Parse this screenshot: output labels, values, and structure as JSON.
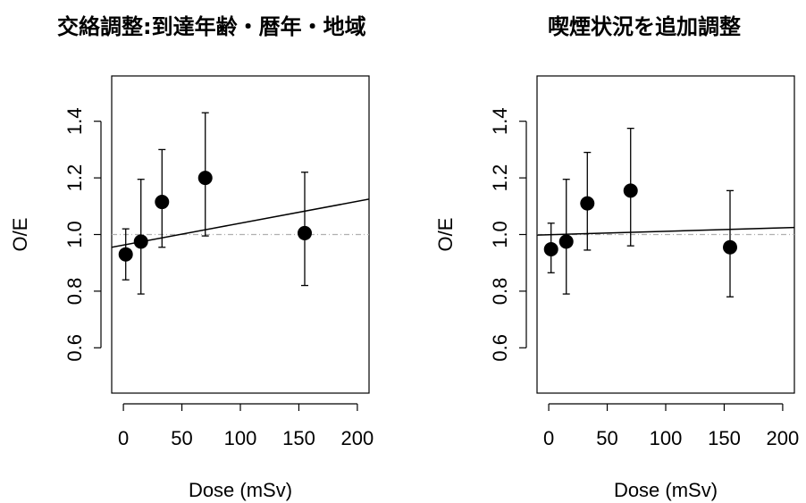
{
  "colors": {
    "points": "#000000",
    "fit_line": "#000000",
    "reference_line": "#b0b0b0",
    "frame": "#000000"
  },
  "panels": [
    {
      "title": "交絡調整:到達年齢・暦年・地域"
    },
    {
      "title": "喫煙状況を追加調整"
    }
  ],
  "chart_data": [
    {
      "type": "scatter",
      "title": "交絡調整:到達年齢・暦年・地域",
      "xlabel": "Dose (mSv)",
      "ylabel": "O/E",
      "xlim": [
        -10,
        210
      ],
      "ylim": [
        0.44,
        1.56
      ],
      "xticks": [
        0,
        50,
        100,
        150,
        200
      ],
      "xtick_labels": [
        "0",
        "50",
        "100",
        "150",
        "200"
      ],
      "yticks": [
        0.6,
        0.8,
        1.0,
        1.2,
        1.4
      ],
      "ytick_labels": [
        "0.6",
        "0.8",
        "1.0",
        "1.2",
        "1.4"
      ],
      "grid": false,
      "points": [
        {
          "x": 2,
          "y": 0.93,
          "lower": 0.84,
          "upper": 1.02
        },
        {
          "x": 15,
          "y": 0.975,
          "lower": 0.79,
          "upper": 1.195
        },
        {
          "x": 33,
          "y": 1.115,
          "lower": 0.955,
          "upper": 1.3
        },
        {
          "x": 70,
          "y": 1.2,
          "lower": 0.995,
          "upper": 1.43
        },
        {
          "x": 155,
          "y": 1.005,
          "lower": 0.82,
          "upper": 1.22
        }
      ],
      "fit_line": {
        "x": [
          -10,
          210
        ],
        "y": [
          0.955,
          1.125
        ]
      },
      "reference_line": {
        "y": 1.0,
        "style": "dashed"
      }
    },
    {
      "type": "scatter",
      "title": "喫煙状況を追加調整",
      "xlabel": "Dose (mSv)",
      "ylabel": "O/E",
      "xlim": [
        -10,
        210
      ],
      "ylim": [
        0.44,
        1.56
      ],
      "xticks": [
        0,
        50,
        100,
        150,
        200
      ],
      "xtick_labels": [
        "0",
        "50",
        "100",
        "150",
        "200"
      ],
      "yticks": [
        0.6,
        0.8,
        1.0,
        1.2,
        1.4
      ],
      "ytick_labels": [
        "0.6",
        "0.8",
        "1.0",
        "1.2",
        "1.4"
      ],
      "grid": false,
      "points": [
        {
          "x": 2,
          "y": 0.948,
          "lower": 0.865,
          "upper": 1.04
        },
        {
          "x": 15,
          "y": 0.975,
          "lower": 0.79,
          "upper": 1.195
        },
        {
          "x": 33,
          "y": 1.11,
          "lower": 0.945,
          "upper": 1.29
        },
        {
          "x": 70,
          "y": 1.155,
          "lower": 0.96,
          "upper": 1.375
        },
        {
          "x": 155,
          "y": 0.955,
          "lower": 0.78,
          "upper": 1.155
        }
      ],
      "fit_line": {
        "x": [
          -10,
          210
        ],
        "y": [
          0.998,
          1.025
        ]
      },
      "reference_line": {
        "y": 1.0,
        "style": "dashed"
      }
    }
  ]
}
